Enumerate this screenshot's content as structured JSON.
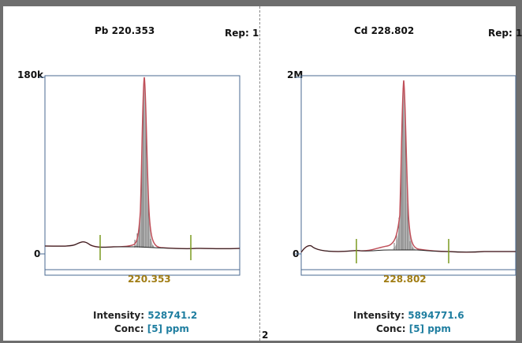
{
  "panels": [
    {
      "element": "Pb",
      "wavelength": "220.353",
      "title": "Pb 220.353",
      "rep_label": "Rep: 1",
      "y_max_label": "180k",
      "y_min_label": "0",
      "x_center_label": "220.353",
      "intensity_label": "Intensity:",
      "intensity_value": "528741.2",
      "conc_label": "Conc:",
      "conc_value": "[5]",
      "conc_unit": "ppm"
    },
    {
      "element": "Cd",
      "wavelength": "228.802",
      "title": "Cd 228.802",
      "rep_label": "Rep: 1",
      "y_max_label": "2M",
      "y_min_label": "0",
      "x_center_label": "228.802",
      "intensity_label": "Intensity:",
      "intensity_value": "5894771.6",
      "conc_label": "Conc:",
      "conc_value": "[5]",
      "conc_unit": "ppm"
    }
  ],
  "footer_index": "2",
  "colors": {
    "peak_fill": "#b8b8b8",
    "peak_stroke": "#c0505a",
    "baseline": "#222222",
    "axis": "#4a6a90",
    "marker": "#7a9a20",
    "wavelength_text": "#a17d14",
    "value_text": "#1f7ea0"
  }
}
